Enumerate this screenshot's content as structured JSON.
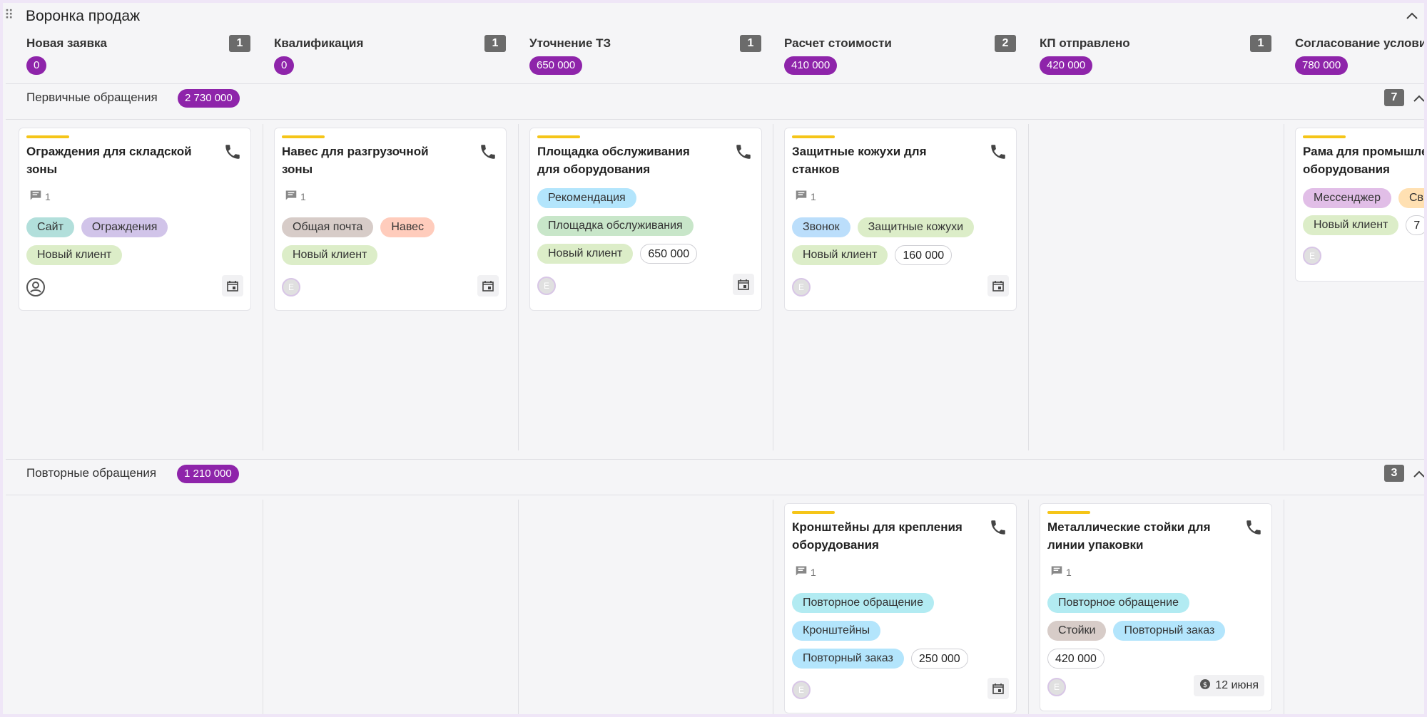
{
  "board": {
    "title": "Воронка продаж"
  },
  "colors": {
    "accent_purple": "#8e24aa",
    "card_accent_yellow": "#f5c518",
    "count_badge": "#6b6b6b"
  },
  "stages": [
    {
      "name": "Новая заявка",
      "count": "1",
      "sum": "0"
    },
    {
      "name": "Квалификация",
      "count": "1",
      "sum": "0"
    },
    {
      "name": "Уточнение ТЗ",
      "count": "1",
      "sum": "650 000"
    },
    {
      "name": "Расчет стоимости",
      "count": "2",
      "sum": "410 000"
    },
    {
      "name": "КП отправлено",
      "count": "1",
      "sum": "420 000"
    },
    {
      "name": "Согласование услови",
      "sum": "780 000"
    }
  ],
  "groups": [
    {
      "title": "Первичные обращения",
      "sum": "2 730 000",
      "count": "7"
    },
    {
      "title": "Повторные обращения",
      "sum": "1 210 000",
      "count": "3"
    }
  ],
  "cards": {
    "c1": {
      "title": "Ограждения для складской зоны",
      "comments": "1",
      "tags": [
        "Сайт",
        "Ограждения",
        "Новый клиент"
      ]
    },
    "c2": {
      "title": "Навес для разгрузочной зоны",
      "comments": "1",
      "tags": [
        "Общая почта",
        "Навес",
        "Новый клиент"
      ],
      "avatar": "E"
    },
    "c3": {
      "title": "Площадка обслуживания для оборудования",
      "tags": [
        "Рекомендация",
        "Площадка обслуживания",
        "Новый клиент"
      ],
      "amount": "650 000",
      "avatar": "E"
    },
    "c4": {
      "title": "Защитные кожухи для станков",
      "comments": "1",
      "tags": [
        "Звонок",
        "Защитные кожухи",
        "Новый клиент"
      ],
      "amount": "160 000",
      "avatar": "E"
    },
    "c5": {
      "title": "Рама для промышле оборудования",
      "tags": [
        "Мессенджер",
        "Св",
        "Новый клиент"
      ],
      "amount": "7",
      "avatar": "E"
    },
    "c6": {
      "title": "Кронштейны для крепления оборудования",
      "comments": "1",
      "tags": [
        "Повторное обращение",
        "Кронштейны",
        "Повторный заказ"
      ],
      "amount": "250 000",
      "avatar": "E"
    },
    "c7": {
      "title": "Металлические стойки для линии упаковки",
      "comments": "1",
      "tags": [
        "Повторное обращение",
        "Стойки",
        "Повторный заказ"
      ],
      "amount": "420 000",
      "avatar": "E",
      "date": "12 июня"
    }
  },
  "icons": {
    "drag": "drag-handle-icon",
    "phone": "phone-icon",
    "comment": "comment-icon",
    "calendar": "calendar-icon",
    "user": "user-circle-icon",
    "chevron": "chevron-up-icon",
    "money": "money-icon"
  }
}
